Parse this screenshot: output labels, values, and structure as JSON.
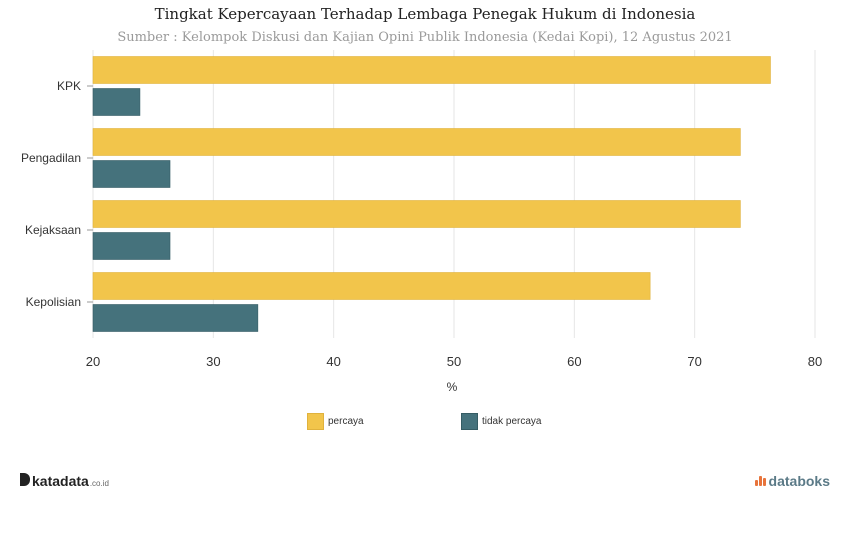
{
  "chart_data": {
    "type": "bar",
    "orientation": "horizontal",
    "title": "Tingkat Kepercayaan Terhadap Lembaga Penegak Hukum di Indonesia",
    "subtitle": "Sumber : Kelompok Diskusi dan Kajian Opini Publik Indonesia (Kedai Kopi), 12 Agustus 2021",
    "categories": [
      "KPK",
      "Pengadilan",
      "Kejaksaan",
      "Kepolisian"
    ],
    "series": [
      {
        "name": "percaya",
        "values": [
          76.3,
          73.8,
          73.8,
          66.3
        ],
        "color": "#f2c54b"
      },
      {
        "name": "tidak percaya",
        "values": [
          23.9,
          26.4,
          26.4,
          33.7
        ],
        "color": "#45727c"
      }
    ],
    "xlabel": "%",
    "ylabel": "",
    "xlim": [
      20,
      80
    ],
    "xticks": [
      "20",
      "30",
      "40",
      "50",
      "60",
      "70",
      "80"
    ],
    "grid": true,
    "legend_position": "bottom"
  },
  "brand": {
    "left_name": "katadata",
    "left_suffix": ".co.id",
    "right_name": "databoks"
  }
}
